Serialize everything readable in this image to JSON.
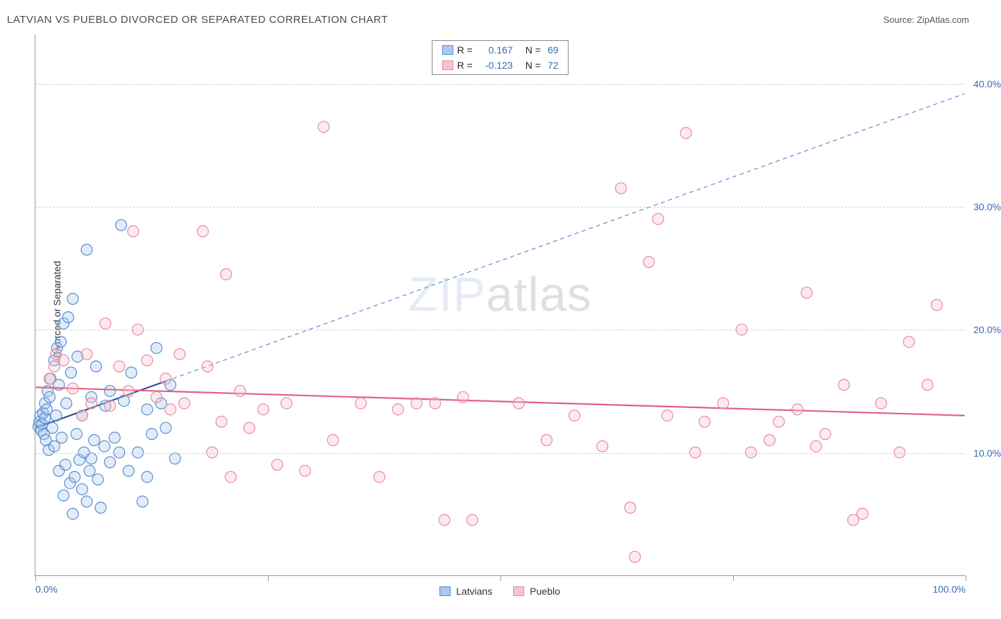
{
  "title": "LATVIAN VS PUEBLO DIVORCED OR SEPARATED CORRELATION CHART",
  "source": "Source: ZipAtlas.com",
  "watermark": {
    "zip": "ZIP",
    "atlas": "atlas"
  },
  "ylabel": "Divorced or Separated",
  "chart": {
    "type": "scatter",
    "xlim": [
      0,
      100
    ],
    "ylim": [
      0,
      44
    ],
    "y_gridlines": [
      10,
      20,
      30,
      40
    ],
    "y_tick_labels": [
      "10.0%",
      "20.0%",
      "30.0%",
      "40.0%"
    ],
    "x_ticks": [
      0,
      25,
      50,
      75,
      100
    ],
    "x_tick_labels": {
      "0": "0.0%",
      "100": "100.0%"
    },
    "background_color": "#ffffff",
    "grid_color": "#d0d0d0",
    "axis_color": "#999999",
    "marker_radius": 8,
    "marker_stroke_width": 1.2,
    "marker_fill_opacity": 0.35,
    "series": [
      {
        "name": "Latvians",
        "color_fill": "#a9c8ee",
        "color_stroke": "#5a8cd0",
        "stats": {
          "R": "0.167",
          "N": "69"
        },
        "trend_solid": {
          "x1": 0,
          "y1": 12.0,
          "x2": 14,
          "y2": 15.8,
          "color": "#2a4f96",
          "width": 2.2
        },
        "trend_dashed": {
          "x1": 14,
          "y1": 15.8,
          "x2": 100,
          "y2": 39.2,
          "color": "#5a8cd0",
          "width": 1.2,
          "dash": "6,5"
        },
        "points": [
          [
            0.3,
            12.1
          ],
          [
            0.4,
            12.5
          ],
          [
            0.5,
            13.0
          ],
          [
            0.6,
            11.8
          ],
          [
            0.7,
            12.3
          ],
          [
            0.8,
            13.2
          ],
          [
            0.9,
            11.5
          ],
          [
            1.0,
            12.8
          ],
          [
            1.0,
            14.0
          ],
          [
            1.1,
            11.0
          ],
          [
            1.2,
            13.5
          ],
          [
            1.3,
            15.0
          ],
          [
            1.4,
            10.2
          ],
          [
            1.5,
            14.5
          ],
          [
            1.6,
            16.0
          ],
          [
            1.8,
            12.0
          ],
          [
            2.0,
            17.5
          ],
          [
            2.0,
            10.5
          ],
          [
            2.2,
            13.0
          ],
          [
            2.3,
            18.5
          ],
          [
            2.5,
            8.5
          ],
          [
            2.5,
            15.5
          ],
          [
            2.7,
            19.0
          ],
          [
            2.8,
            11.2
          ],
          [
            3.0,
            20.5
          ],
          [
            3.0,
            6.5
          ],
          [
            3.2,
            9.0
          ],
          [
            3.3,
            14.0
          ],
          [
            3.5,
            21.0
          ],
          [
            3.7,
            7.5
          ],
          [
            3.8,
            16.5
          ],
          [
            4.0,
            22.5
          ],
          [
            4.0,
            5.0
          ],
          [
            4.2,
            8.0
          ],
          [
            4.4,
            11.5
          ],
          [
            4.5,
            17.8
          ],
          [
            4.7,
            9.4
          ],
          [
            5.0,
            13.0
          ],
          [
            5.0,
            7.0
          ],
          [
            5.2,
            10.0
          ],
          [
            5.5,
            26.5
          ],
          [
            5.5,
            6.0
          ],
          [
            5.8,
            8.5
          ],
          [
            6.0,
            9.5
          ],
          [
            6.0,
            14.5
          ],
          [
            6.3,
            11.0
          ],
          [
            6.5,
            17.0
          ],
          [
            6.7,
            7.8
          ],
          [
            7.0,
            5.5
          ],
          [
            7.4,
            10.5
          ],
          [
            7.5,
            13.8
          ],
          [
            8.0,
            9.2
          ],
          [
            8.0,
            15.0
          ],
          [
            8.5,
            11.2
          ],
          [
            9.0,
            10.0
          ],
          [
            9.2,
            28.5
          ],
          [
            9.5,
            14.2
          ],
          [
            10.0,
            8.5
          ],
          [
            10.3,
            16.5
          ],
          [
            11.0,
            10.0
          ],
          [
            11.5,
            6.0
          ],
          [
            12.0,
            13.5
          ],
          [
            12.0,
            8.0
          ],
          [
            12.5,
            11.5
          ],
          [
            13.0,
            18.5
          ],
          [
            13.5,
            14.0
          ],
          [
            14.0,
            12.0
          ],
          [
            14.5,
            15.5
          ],
          [
            15.0,
            9.5
          ]
        ]
      },
      {
        "name": "Pueblo",
        "color_fill": "#f6c4cf",
        "color_stroke": "#e78aa0",
        "stats": {
          "R": "-0.123",
          "N": "72"
        },
        "trend_solid": {
          "x1": 0,
          "y1": 15.3,
          "x2": 100,
          "y2": 13.0,
          "color": "#e26083",
          "width": 2.2
        },
        "points": [
          [
            1.5,
            16.0
          ],
          [
            2.0,
            17.0
          ],
          [
            2.2,
            18.0
          ],
          [
            3.0,
            17.5
          ],
          [
            4.0,
            15.2
          ],
          [
            5.0,
            13.0
          ],
          [
            5.5,
            18.0
          ],
          [
            6.0,
            14.0
          ],
          [
            7.5,
            20.5
          ],
          [
            8.0,
            13.8
          ],
          [
            9.0,
            17.0
          ],
          [
            10.0,
            15.0
          ],
          [
            10.5,
            28.0
          ],
          [
            11.0,
            20.0
          ],
          [
            12.0,
            17.5
          ],
          [
            13.0,
            14.5
          ],
          [
            14.0,
            16.0
          ],
          [
            14.5,
            13.5
          ],
          [
            15.5,
            18.0
          ],
          [
            16.0,
            14.0
          ],
          [
            18.0,
            28.0
          ],
          [
            18.5,
            17.0
          ],
          [
            19.0,
            10.0
          ],
          [
            20.0,
            12.5
          ],
          [
            20.5,
            24.5
          ],
          [
            21.0,
            8.0
          ],
          [
            22.0,
            15.0
          ],
          [
            23.0,
            12.0
          ],
          [
            24.5,
            13.5
          ],
          [
            26.0,
            9.0
          ],
          [
            27.0,
            14.0
          ],
          [
            29.0,
            8.5
          ],
          [
            31.0,
            36.5
          ],
          [
            32.0,
            11.0
          ],
          [
            35.0,
            14.0
          ],
          [
            37.0,
            8.0
          ],
          [
            39.0,
            13.5
          ],
          [
            41.0,
            14.0
          ],
          [
            43.0,
            14.0
          ],
          [
            44.0,
            4.5
          ],
          [
            46.0,
            14.5
          ],
          [
            47.0,
            4.5
          ],
          [
            52.0,
            14.0
          ],
          [
            55.0,
            11.0
          ],
          [
            58.0,
            13.0
          ],
          [
            61.0,
            10.5
          ],
          [
            63.0,
            31.5
          ],
          [
            64.0,
            5.5
          ],
          [
            64.5,
            1.5
          ],
          [
            66.0,
            25.5
          ],
          [
            67.0,
            29.0
          ],
          [
            68.0,
            13.0
          ],
          [
            70.0,
            36.0
          ],
          [
            71.0,
            10.0
          ],
          [
            72.0,
            12.5
          ],
          [
            74.0,
            14.0
          ],
          [
            76.0,
            20.0
          ],
          [
            77.0,
            10.0
          ],
          [
            79.0,
            11.0
          ],
          [
            80.0,
            12.5
          ],
          [
            82.0,
            13.5
          ],
          [
            83.0,
            23.0
          ],
          [
            84.0,
            10.5
          ],
          [
            85.0,
            11.5
          ],
          [
            87.0,
            15.5
          ],
          [
            88.0,
            4.5
          ],
          [
            89.0,
            5.0
          ],
          [
            91.0,
            14.0
          ],
          [
            93.0,
            10.0
          ],
          [
            94.0,
            19.0
          ],
          [
            96.0,
            15.5
          ],
          [
            97.0,
            22.0
          ]
        ]
      }
    ]
  },
  "legend_bottom": [
    {
      "label": "Latvians",
      "fill": "#a9c8ee",
      "stroke": "#5a8cd0"
    },
    {
      "label": "Pueblo",
      "fill": "#f6c4cf",
      "stroke": "#e78aa0"
    }
  ]
}
